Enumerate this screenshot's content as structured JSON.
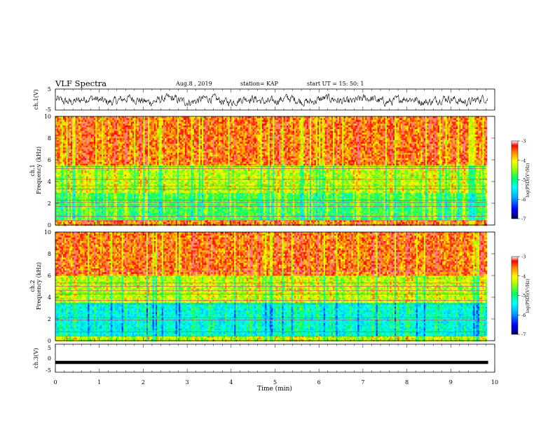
{
  "header": {
    "title": "VLF Spectra",
    "date": "Aug.8 , 2019",
    "station": "station= KAP",
    "start_ut": "start UT = 15: 50: 1"
  },
  "chart_data": [
    {
      "type": "line",
      "name": "ch1-waveform",
      "ylabel": "ch.1(V)",
      "ylim": [
        -5,
        5
      ],
      "yticks": [
        "5",
        "-5"
      ],
      "xlim": [
        0,
        10
      ],
      "description_shown": "noisy waveform between about -2.5 and +1.5 V"
    },
    {
      "type": "heatmap",
      "name": "ch1-spectrogram",
      "ylabel_lines": [
        "ch.1",
        "Frequency (kHz)"
      ],
      "ylim": [
        0,
        10
      ],
      "yticks": [
        "0",
        "2",
        "4",
        "6",
        "8",
        "10"
      ],
      "xlim": [
        0,
        10
      ],
      "data_end_min": 9.8,
      "colorbar": {
        "label": "log(PSD)(V²/Hz)",
        "range": [
          -7,
          -3
        ],
        "ticks": [
          "-3",
          "-4",
          "-5",
          "-6",
          "-7"
        ]
      },
      "bands": [
        {
          "from_khz": 5.5,
          "to_khz": 10,
          "level": "high",
          "dominant": "red-orange"
        },
        {
          "from_khz": 3.0,
          "to_khz": 5.5,
          "level": "medium",
          "dominant": "yellow-green"
        },
        {
          "from_khz": 0.5,
          "to_khz": 3.0,
          "level": "medium-low",
          "dominant": "green-cyan"
        },
        {
          "from_khz": 0.0,
          "to_khz": 0.5,
          "level": "high",
          "dominant": "red"
        }
      ],
      "lines_khz": [
        0.4,
        0.8,
        1.7,
        2.1,
        2.3,
        3.3,
        3.6,
        4.2,
        5.2,
        5.4
      ]
    },
    {
      "type": "heatmap",
      "name": "ch2-spectrogram",
      "ylabel_lines": [
        "ch.2",
        "Frequency (kHz)"
      ],
      "ylim": [
        0,
        10
      ],
      "yticks": [
        "0",
        "2",
        "4",
        "6",
        "8",
        "10"
      ],
      "xlim": [
        0,
        10
      ],
      "data_end_min": 9.8,
      "colorbar": {
        "label": "log(PSD)(V²/Hz)",
        "range": [
          -7,
          -3
        ],
        "ticks": [
          "-3",
          "-4",
          "-5",
          "-6",
          "-7"
        ]
      },
      "bands": [
        {
          "from_khz": 6.0,
          "to_khz": 10,
          "level": "high",
          "dominant": "yellow-orange"
        },
        {
          "from_khz": 3.5,
          "to_khz": 6.0,
          "level": "medium",
          "dominant": "green-yellow"
        },
        {
          "from_khz": 0.5,
          "to_khz": 3.5,
          "level": "low",
          "dominant": "blue-cyan"
        },
        {
          "from_khz": 0.0,
          "to_khz": 0.5,
          "level": "medium",
          "dominant": "green"
        }
      ],
      "lines_khz": [
        0.4,
        0.8,
        1.9,
        2.1,
        3.4,
        3.7,
        4.3,
        4.6,
        5.0,
        5.3,
        6.4
      ]
    },
    {
      "type": "line",
      "name": "ch3-waveform",
      "ylabel": "ch.3(V)",
      "ylim": [
        -5,
        5
      ],
      "yticks": [
        "5",
        "0",
        "-5"
      ],
      "xlim": [
        0,
        10
      ],
      "constant_value": -1.5
    }
  ],
  "x_axis": {
    "label": "Time (min)",
    "ticks": [
      "0",
      "1",
      "2",
      "3",
      "4",
      "5",
      "6",
      "7",
      "8",
      "9",
      "10"
    ]
  },
  "colorscale": [
    "#000080",
    "#0000ff",
    "#0080ff",
    "#00ffff",
    "#00ff80",
    "#80ff00",
    "#ffff00",
    "#ff8000",
    "#ff0000",
    "#ffffff"
  ]
}
